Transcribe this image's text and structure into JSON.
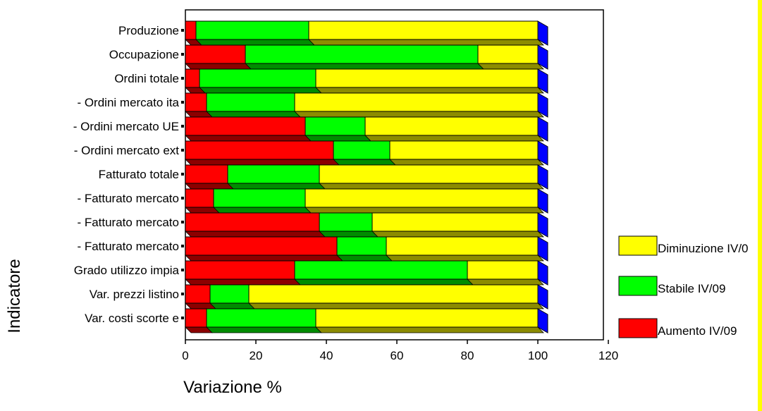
{
  "chart_data": {
    "type": "bar",
    "orientation": "horizontal",
    "stacked": true,
    "three_d": true,
    "categories": [
      "Produzione",
      "Occupazione",
      "Ordini totale",
      "- Ordini mercato ita",
      "- Ordini mercato UE",
      "- Ordini mercato ext",
      "Fatturato totale",
      "- Fatturato mercato",
      "- Fatturato mercato",
      "- Fatturato mercato",
      "Grado utilizzo impia",
      "Var. prezzi listino",
      "Var. costi scorte e"
    ],
    "series": [
      {
        "name": "Aumento IV/09",
        "color": "#ff0000",
        "values": [
          3,
          17,
          4,
          6,
          34,
          42,
          12,
          8,
          38,
          43,
          31,
          7,
          6
        ]
      },
      {
        "name": "Stabile IV/09",
        "color": "#00ff00",
        "values": [
          32,
          66,
          33,
          25,
          17,
          16,
          26,
          26,
          15,
          14,
          49,
          11,
          31
        ]
      },
      {
        "name": "Diminuzione IV/0",
        "color": "#ffff00",
        "values": [
          65,
          17,
          63,
          69,
          49,
          42,
          62,
          66,
          47,
          43,
          20,
          82,
          63
        ]
      }
    ],
    "cap_color": "#0000ff",
    "xlabel": "Variazione %",
    "ylabel": "Indicatore",
    "xlim": [
      0,
      120
    ],
    "xticks": [
      0,
      20,
      40,
      60,
      80,
      100,
      120
    ],
    "grid": false,
    "legend_position": "right"
  }
}
